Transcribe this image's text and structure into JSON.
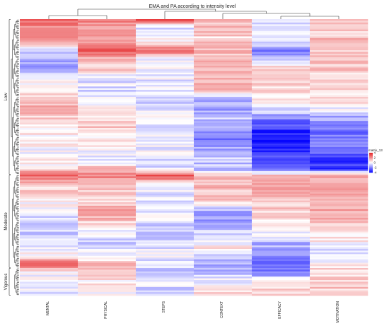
{
  "chart_data": {
    "type": "heatmap",
    "title": "EMA and PA according to intensity level",
    "columns": [
      "MENTAL",
      "PHYSICAL",
      "STEPS",
      "CONTEXT",
      "EFFICACY",
      "MOTIVATION"
    ],
    "row_groups": [
      {
        "label": "Low",
        "start_row": 0,
        "end_row": 89
      },
      {
        "label": "Moderate",
        "start_row": 90,
        "end_row": 143
      },
      {
        "label": "Vigorous",
        "start_row": 144,
        "end_row": 159
      }
    ],
    "n_rows": 160,
    "value_range": [
      -4,
      4
    ],
    "legend": {
      "title": "matrix_13",
      "ticks": [
        "4",
        "2",
        "0",
        "-2",
        "-4"
      ]
    },
    "colors": {
      "high": "#e41a1c",
      "mid": "#ffffff",
      "low": "#0000ff"
    },
    "profiles": {
      "MENTAL": [
        [
          0,
          2.8
        ],
        [
          6,
          1.5
        ],
        [
          10,
          2.6
        ],
        [
          14,
          0.6
        ],
        [
          20,
          -0.8
        ],
        [
          26,
          -1.5
        ],
        [
          32,
          -0.7
        ],
        [
          40,
          0.4
        ],
        [
          50,
          1.2
        ],
        [
          60,
          0.6
        ],
        [
          70,
          0.2
        ],
        [
          78,
          -0.2
        ],
        [
          86,
          0.5
        ],
        [
          90,
          2.6
        ],
        [
          96,
          1.0
        ],
        [
          104,
          0.4
        ],
        [
          112,
          -0.6
        ],
        [
          120,
          -0.9
        ],
        [
          128,
          -0.4
        ],
        [
          136,
          0.2
        ],
        [
          142,
          2.8
        ],
        [
          146,
          0.3
        ],
        [
          152,
          -0.6
        ],
        [
          159,
          -0.3
        ]
      ],
      "PHYSICAL": [
        [
          0,
          2.2
        ],
        [
          4,
          1.6
        ],
        [
          8,
          2.4
        ],
        [
          12,
          1.6
        ],
        [
          18,
          2.7
        ],
        [
          22,
          1.5
        ],
        [
          28,
          0.9
        ],
        [
          34,
          -0.3
        ],
        [
          42,
          -0.7
        ],
        [
          52,
          0.4
        ],
        [
          62,
          0.9
        ],
        [
          70,
          0.3
        ],
        [
          80,
          -0.5
        ],
        [
          90,
          2.2
        ],
        [
          96,
          1.4
        ],
        [
          104,
          0.7
        ],
        [
          112,
          2.0
        ],
        [
          120,
          0.1
        ],
        [
          128,
          -0.7
        ],
        [
          136,
          -0.3
        ],
        [
          142,
          1.2
        ],
        [
          150,
          0.4
        ],
        [
          159,
          0.2
        ]
      ],
      "STEPS": [
        [
          0,
          3.2
        ],
        [
          4,
          -0.6
        ],
        [
          10,
          -0.3
        ],
        [
          14,
          1.2
        ],
        [
          18,
          3.0
        ],
        [
          22,
          -0.4
        ],
        [
          30,
          -0.2
        ],
        [
          40,
          -0.4
        ],
        [
          50,
          -0.6
        ],
        [
          60,
          -0.2
        ],
        [
          70,
          -0.4
        ],
        [
          78,
          -0.2
        ],
        [
          86,
          -0.5
        ],
        [
          90,
          3.2
        ],
        [
          96,
          -0.4
        ],
        [
          104,
          -0.6
        ],
        [
          112,
          -0.4
        ],
        [
          120,
          -0.6
        ],
        [
          128,
          -0.5
        ],
        [
          136,
          -0.3
        ],
        [
          142,
          -0.7
        ],
        [
          150,
          -0.5
        ],
        [
          159,
          -0.6
        ]
      ],
      "CONTEXT": [
        [
          0,
          0.9
        ],
        [
          6,
          1.2
        ],
        [
          10,
          0.7
        ],
        [
          18,
          1.2
        ],
        [
          24,
          1.4
        ],
        [
          32,
          1.1
        ],
        [
          40,
          1.0
        ],
        [
          48,
          -1.5
        ],
        [
          54,
          -1.2
        ],
        [
          60,
          -0.8
        ],
        [
          66,
          -2.2
        ],
        [
          72,
          -1.6
        ],
        [
          80,
          -0.6
        ],
        [
          86,
          -1.2
        ],
        [
          90,
          0.8
        ],
        [
          96,
          1.1
        ],
        [
          104,
          0.9
        ],
        [
          112,
          -1.6
        ],
        [
          118,
          -1.2
        ],
        [
          124,
          -0.8
        ],
        [
          132,
          0.6
        ],
        [
          138,
          -0.8
        ],
        [
          144,
          -1.2
        ],
        [
          150,
          -0.4
        ],
        [
          159,
          0.6
        ]
      ],
      "EFFICACY": [
        [
          0,
          -0.6
        ],
        [
          6,
          -0.4
        ],
        [
          12,
          -0.2
        ],
        [
          18,
          -2.3
        ],
        [
          22,
          -1.0
        ],
        [
          28,
          1.1
        ],
        [
          36,
          0.9
        ],
        [
          44,
          0.6
        ],
        [
          52,
          -0.4
        ],
        [
          60,
          -2.6
        ],
        [
          66,
          -3.4
        ],
        [
          72,
          -3.6
        ],
        [
          80,
          -3.0
        ],
        [
          86,
          -2.4
        ],
        [
          90,
          1.0
        ],
        [
          96,
          1.3
        ],
        [
          104,
          1.0
        ],
        [
          112,
          0.8
        ],
        [
          120,
          0.6
        ],
        [
          128,
          -1.0
        ],
        [
          134,
          -1.3
        ],
        [
          140,
          -2.2
        ],
        [
          146,
          -2.0
        ],
        [
          152,
          0.5
        ],
        [
          159,
          0.8
        ]
      ],
      "MOTIVATION": [
        [
          0,
          1.0
        ],
        [
          6,
          0.8
        ],
        [
          12,
          1.3
        ],
        [
          18,
          0.6
        ],
        [
          24,
          1.0
        ],
        [
          30,
          0.8
        ],
        [
          36,
          0.4
        ],
        [
          42,
          0.7
        ],
        [
          48,
          0.5
        ],
        [
          56,
          -1.2
        ],
        [
          62,
          -1.8
        ],
        [
          68,
          -2.4
        ],
        [
          74,
          -1.8
        ],
        [
          80,
          -2.8
        ],
        [
          86,
          -3.2
        ],
        [
          90,
          1.4
        ],
        [
          96,
          1.3
        ],
        [
          104,
          1.1
        ],
        [
          112,
          1.5
        ],
        [
          120,
          0.8
        ],
        [
          128,
          0.3
        ],
        [
          136,
          -0.6
        ],
        [
          144,
          0.6
        ],
        [
          152,
          1.0
        ],
        [
          159,
          0.7
        ]
      ]
    }
  }
}
